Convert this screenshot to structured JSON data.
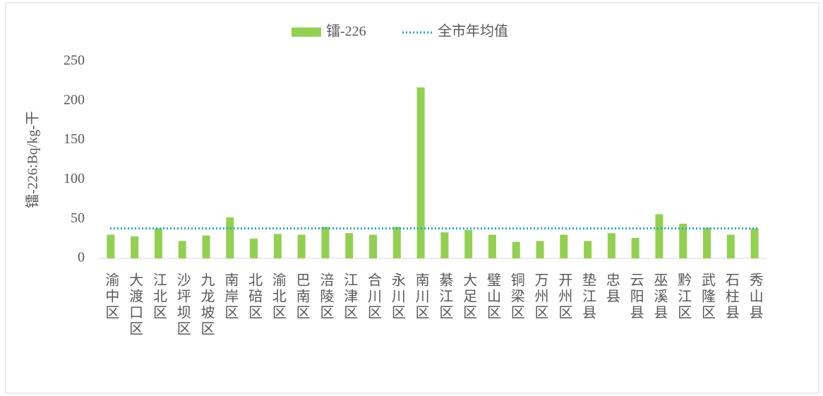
{
  "chart_data": {
    "type": "bar",
    "y_label": "镭-226:Bq/kg-干",
    "categories": [
      "渝中区",
      "大渡口区",
      "江北区",
      "沙坪坝区",
      "九龙坡区",
      "南岸区",
      "北碚区",
      "渝北区",
      "巴南区",
      "涪陵区",
      "江津区",
      "合川区",
      "永川区",
      "南川区",
      "綦江区",
      "大足区",
      "璧山区",
      "铜梁区",
      "万州区",
      "开州区",
      "垫江县",
      "忠县",
      "云阳县",
      "巫溪县",
      "黔江区",
      "武隆区",
      "石柱县",
      "秀山县"
    ],
    "series": [
      {
        "name": "镭-226",
        "color": "#92d050",
        "values": [
          30,
          28,
          38,
          22,
          29,
          52,
          25,
          31,
          30,
          40,
          32,
          30,
          40,
          217,
          33,
          36,
          30,
          21,
          22,
          30,
          22,
          32,
          26,
          56,
          44,
          39,
          30,
          38
        ]
      }
    ],
    "reference_line": {
      "name": "全市年均值",
      "value": 38,
      "color": "#1ea8d4",
      "style": "dotted"
    },
    "ylim": [
      0,
      250
    ],
    "yticks": [
      0,
      50,
      100,
      150,
      200,
      250
    ],
    "grid": false
  }
}
